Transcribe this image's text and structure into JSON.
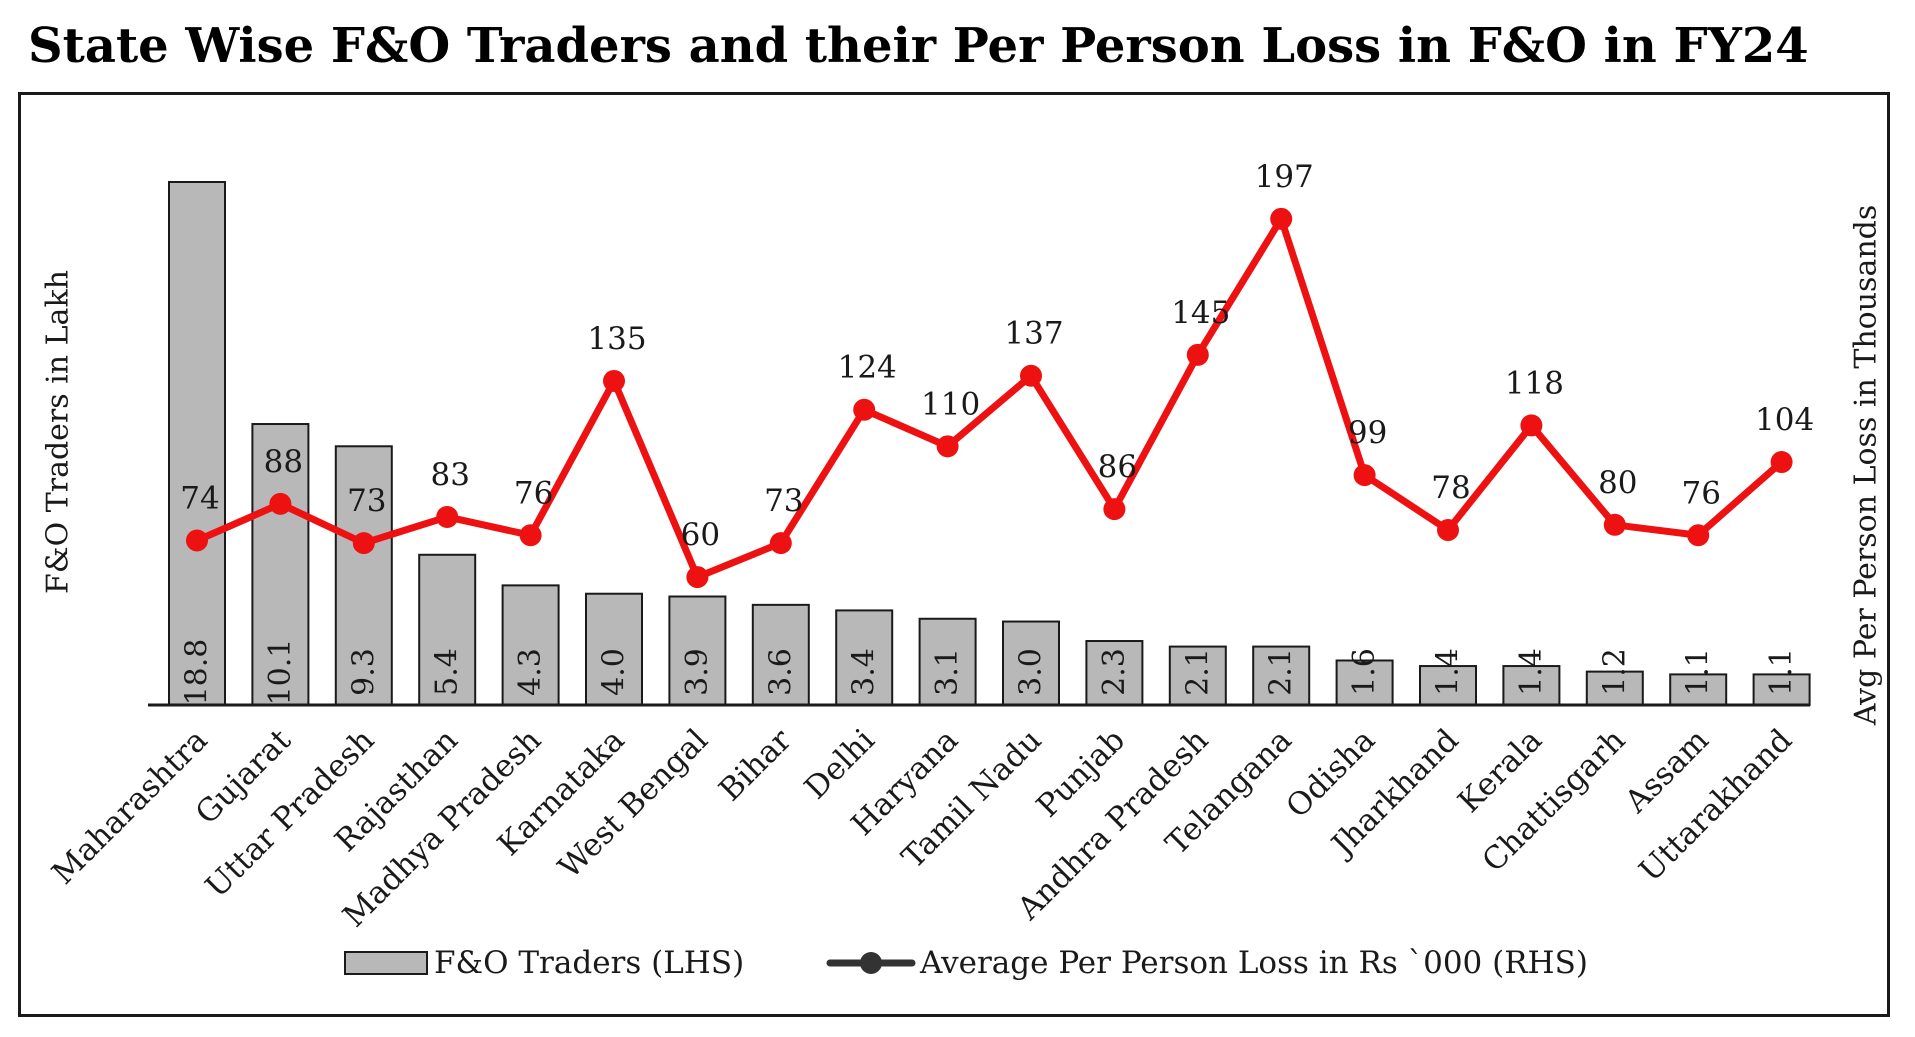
{
  "chart_data": {
    "type": "bar",
    "title": "State Wise F&O Traders and their Per Person Loss in F&O in FY24",
    "ylabel_left": "F&O Traders in Lakh",
    "ylabel_right": "Avg Per Person Loss in Thousands",
    "categories": [
      "Maharashtra",
      "Gujarat",
      "Uttar Pradesh",
      "Rajasthan",
      "Madhya Pradesh",
      "Karnataka",
      "West Bengal",
      "Bihar",
      "Delhi",
      "Haryana",
      "Tamil Nadu",
      "Punjab",
      "Andhra Pradesh",
      "Telangana",
      "Odisha",
      "Jharkhand",
      "Kerala",
      "Chattisgarh",
      "Assam",
      "Uttarakhand"
    ],
    "series": [
      {
        "name": "F&O Traders (LHS)",
        "type": "bar",
        "axis": "left",
        "values": [
          18.8,
          10.1,
          9.3,
          5.4,
          4.3,
          4.0,
          3.9,
          3.6,
          3.4,
          3.1,
          3.0,
          2.3,
          2.1,
          2.1,
          1.6,
          1.4,
          1.4,
          1.2,
          1.1,
          1.1
        ],
        "labels": [
          "18.8",
          "10.1",
          "9.3",
          "5.4",
          "4.3",
          "4.0",
          "3.9",
          "3.6",
          "3.4",
          "3.1",
          "3.0",
          "2.3",
          "2.1",
          "2.1",
          "1.6",
          "1.4",
          "1.4",
          "1.2",
          "1.1",
          "1.1"
        ]
      },
      {
        "name": "Average Per Person Loss in Rs `000 (RHS)",
        "type": "line",
        "axis": "right",
        "values": [
          74,
          88,
          73,
          83,
          76,
          135,
          60,
          73,
          124,
          110,
          137,
          86,
          145,
          197,
          99,
          78,
          118,
          80,
          76,
          104
        ],
        "labels": [
          "74",
          "88",
          "73",
          "83",
          "76",
          "135",
          "60",
          "73",
          "124",
          "110",
          "137",
          "86",
          "145",
          "197",
          "99",
          "78",
          "118",
          "80",
          "76",
          "104"
        ]
      }
    ],
    "ylim_left": [
      0,
      20
    ],
    "ylim_right": [
      0,
      260
    ],
    "legend": "bottom",
    "grid": false,
    "colors": {
      "bar_fill": "#b8b8b8",
      "bar_stroke": "#1a1a1a",
      "line": "#ee1111",
      "legend_line": "#333333",
      "axis": "#1a1a1a"
    }
  }
}
